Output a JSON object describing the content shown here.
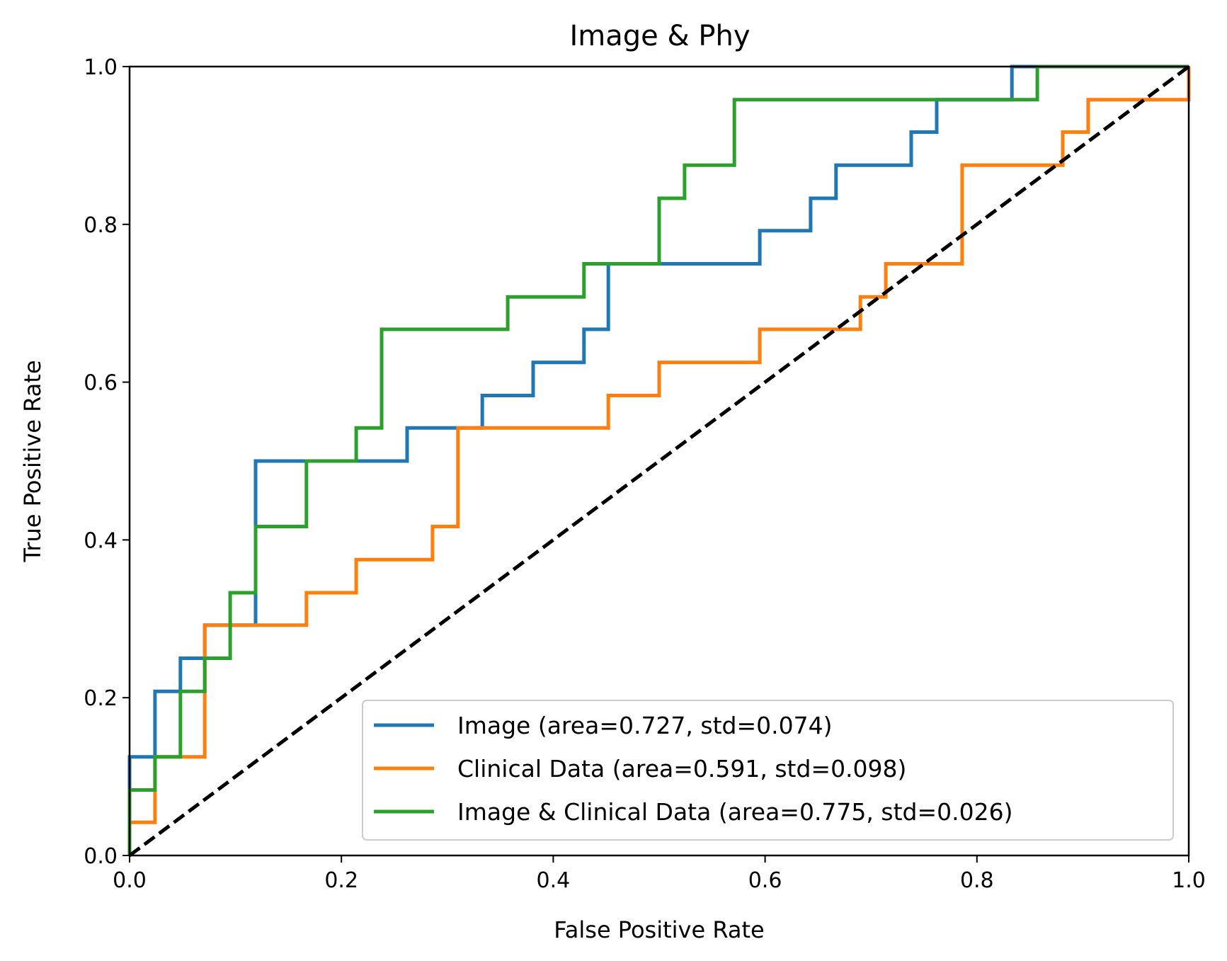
{
  "chart_data": {
    "type": "line",
    "title": "Image & Phy",
    "xlabel": "False Positive Rate",
    "ylabel": "True Positive Rate",
    "xlim": [
      0.0,
      1.0
    ],
    "ylim": [
      0.0,
      1.0
    ],
    "xticks": [
      "0.0",
      "0.2",
      "0.4",
      "0.6",
      "0.8",
      "1.0"
    ],
    "yticks": [
      "0.0",
      "0.2",
      "0.4",
      "0.6",
      "0.8",
      "1.0"
    ],
    "grid": false,
    "legend_position": "lower-right",
    "series": [
      {
        "name": "Image (area=0.727, std=0.074)",
        "color": "#1f77b4",
        "x": [
          0,
          0,
          0.024,
          0.024,
          0.048,
          0.048,
          0.071,
          0.071,
          0.119,
          0.119,
          0.262,
          0.262,
          0.333,
          0.333,
          0.381,
          0.381,
          0.429,
          0.429,
          0.452,
          0.452,
          0.595,
          0.595,
          0.643,
          0.643,
          0.667,
          0.667,
          0.738,
          0.738,
          0.762,
          0.762,
          0.833,
          0.833,
          1.0
        ],
        "y": [
          0,
          0.125,
          0.125,
          0.208,
          0.208,
          0.25,
          0.25,
          0.292,
          0.292,
          0.5,
          0.5,
          0.542,
          0.542,
          0.583,
          0.583,
          0.625,
          0.625,
          0.667,
          0.667,
          0.75,
          0.75,
          0.792,
          0.792,
          0.833,
          0.833,
          0.875,
          0.875,
          0.917,
          0.917,
          0.958,
          0.958,
          1.0,
          1.0
        ]
      },
      {
        "name": "Clinical Data (area=0.591, std=0.098)",
        "color": "#ff7f0e",
        "x": [
          0,
          0,
          0.024,
          0.024,
          0.071,
          0.071,
          0.167,
          0.167,
          0.214,
          0.214,
          0.286,
          0.286,
          0.31,
          0.31,
          0.452,
          0.452,
          0.5,
          0.5,
          0.595,
          0.595,
          0.69,
          0.69,
          0.714,
          0.714,
          0.786,
          0.786,
          0.881,
          0.881,
          0.905,
          0.905,
          1.0,
          1.0
        ],
        "y": [
          0,
          0.042,
          0.042,
          0.125,
          0.125,
          0.292,
          0.292,
          0.333,
          0.333,
          0.375,
          0.375,
          0.417,
          0.417,
          0.542,
          0.542,
          0.583,
          0.583,
          0.625,
          0.625,
          0.667,
          0.667,
          0.708,
          0.708,
          0.75,
          0.75,
          0.875,
          0.875,
          0.917,
          0.917,
          0.958,
          0.958,
          1.0
        ]
      },
      {
        "name": "Image & Clinical Data (area=0.775, std=0.026)",
        "color": "#2ca02c",
        "x": [
          0,
          0,
          0.024,
          0.024,
          0.048,
          0.048,
          0.071,
          0.071,
          0.095,
          0.095,
          0.119,
          0.119,
          0.167,
          0.167,
          0.214,
          0.214,
          0.238,
          0.238,
          0.357,
          0.357,
          0.429,
          0.429,
          0.5,
          0.5,
          0.524,
          0.524,
          0.571,
          0.571,
          0.857,
          0.857,
          1.0
        ],
        "y": [
          0,
          0.083,
          0.083,
          0.125,
          0.125,
          0.208,
          0.208,
          0.25,
          0.25,
          0.333,
          0.333,
          0.417,
          0.417,
          0.5,
          0.5,
          0.542,
          0.542,
          0.667,
          0.667,
          0.708,
          0.708,
          0.75,
          0.75,
          0.833,
          0.833,
          0.875,
          0.875,
          0.958,
          0.958,
          1.0,
          1.0
        ]
      }
    ],
    "reference_line": {
      "x": [
        0,
        1
      ],
      "y": [
        0,
        1
      ],
      "color": "#000000",
      "style": "dashed"
    }
  }
}
